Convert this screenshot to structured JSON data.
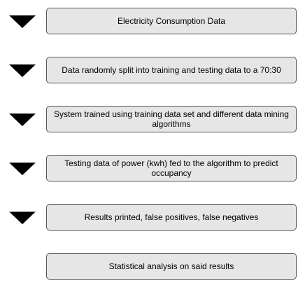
{
  "steps": [
    {
      "label": "Electricity Consumption Data"
    },
    {
      "label": "Data randomly split into training and testing data to a 70:30"
    },
    {
      "label": "System trained using training data set and different data mining algorithms"
    },
    {
      "label": "Testing data of power (kwh) fed to the algorithm to predict occupancy"
    },
    {
      "label": "Results printed, false positives, false negatives"
    },
    {
      "label": "Statistical analysis on said results"
    }
  ],
  "arrow_icon": "triangle-down-icon",
  "colors": {
    "box_fill": "#e6e6e6",
    "box_border": "#555555",
    "arrow": "#000000"
  }
}
